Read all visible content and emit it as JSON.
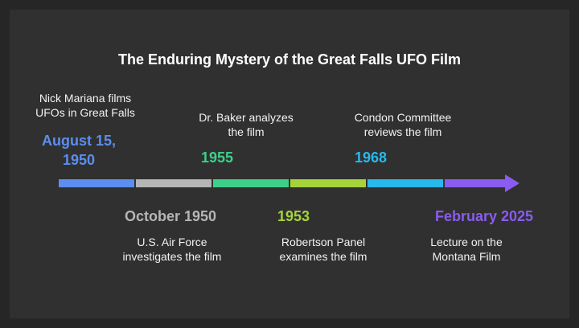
{
  "title": "The Enduring Mystery of the Great Falls UFO Film",
  "colors": {
    "background": "#303030",
    "events": [
      "#5b8ef0",
      "#b5b5b5",
      "#3ecf8a",
      "#a6d33c",
      "#29b8ec",
      "#8a5cf0"
    ]
  },
  "events": [
    {
      "date_line1": "August 15,",
      "date_line2": "1950",
      "desc_line1": "Nick Mariana films",
      "desc_line2": "UFOs in Great Falls"
    },
    {
      "date": "October 1950",
      "desc_line1": "U.S. Air Force",
      "desc_line2": "investigates the film"
    },
    {
      "date": "1955",
      "desc_line1": "Dr. Baker analyzes",
      "desc_line2": "the film"
    },
    {
      "date": "1953",
      "desc_line1": "Robertson Panel",
      "desc_line2": "examines the film"
    },
    {
      "date": "1968",
      "desc_line1": "Condon Committee",
      "desc_line2": "reviews the film"
    },
    {
      "date": "February 2025",
      "desc_line1": "Lecture on the",
      "desc_line2": "Montana Film"
    }
  ]
}
